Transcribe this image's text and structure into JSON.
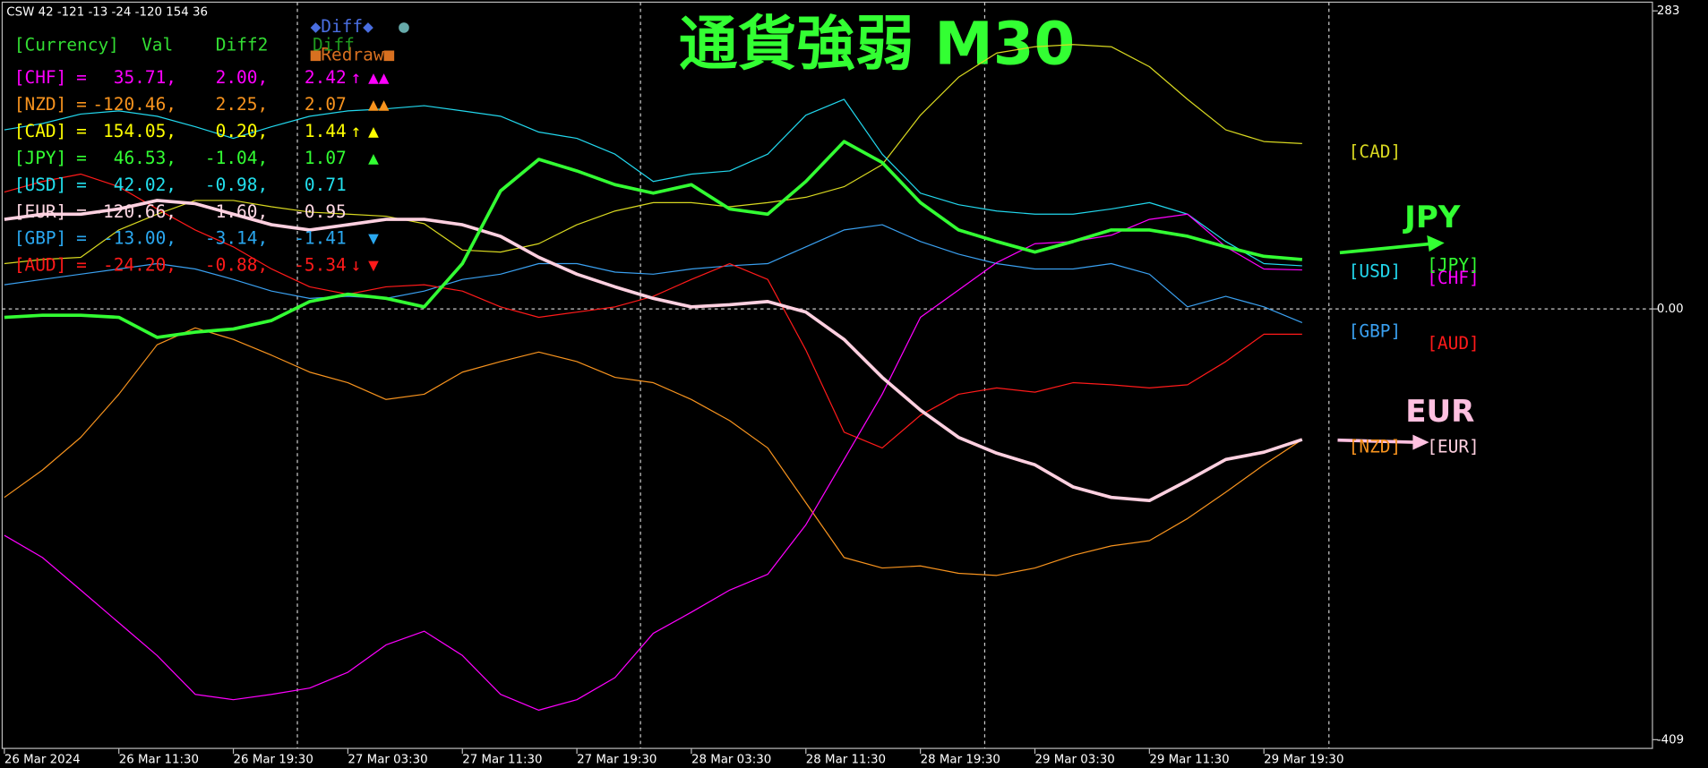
{
  "chart_data": {
    "type": "line",
    "header": "CSW 42 -121 -13 -24 -120 154 36",
    "title": "通貨強弱 M30",
    "title_color": "#33ff33",
    "categories": [
      "26 Mar 2024",
      null,
      null,
      "26 Mar 11:30",
      null,
      null,
      "26 Mar 19:30",
      null,
      null,
      "27 Mar 03:30",
      null,
      null,
      "27 Mar 11:30",
      null,
      null,
      "27 Mar 19:30",
      null,
      null,
      "28 Mar 03:30",
      null,
      null,
      "28 Mar 11:30",
      null,
      null,
      "28 Mar 19:30",
      null,
      null,
      "29 Mar 03:30",
      null,
      null,
      "29 Mar 11:30",
      null,
      null,
      "29 Mar 19:30",
      null
    ],
    "ylim": [
      -409,
      283
    ],
    "yticks": [
      -409,
      {
        "value": 0,
        "label": "0.00"
      },
      283
    ],
    "series": [
      {
        "name": "[CHF]",
        "color": "#ff00ff",
        "line_width": 1,
        "values": [
          -215,
          -236,
          -267,
          -298,
          -329,
          -366,
          -371,
          -366,
          -360,
          -345,
          -319,
          -306,
          -329,
          -366,
          -381,
          -371,
          -350,
          -308,
          -288,
          -267,
          -252,
          -205,
          -143,
          -81,
          -8,
          18,
          44,
          62,
          64,
          70,
          85,
          90,
          59,
          38,
          37
        ]
      },
      {
        "name": "[NZD]",
        "color": "#f7931e",
        "line_width": 1,
        "values": [
          -179,
          -153,
          -122,
          -81,
          -34,
          -18,
          -29,
          -44,
          -60,
          -70,
          -86,
          -81,
          -60,
          -50,
          -41,
          -50,
          -65,
          -70,
          -86,
          -106,
          -132,
          -184,
          -236,
          -246,
          -244,
          -251,
          -253,
          -246,
          -234,
          -225,
          -220,
          -199,
          -174,
          -148,
          -124
        ]
      },
      {
        "name": "[CAD]",
        "color": "#d8d820",
        "line_width": 1,
        "values": [
          43,
          47,
          49,
          75,
          90,
          103,
          103,
          97,
          92,
          90,
          88,
          81,
          56,
          54,
          62,
          80,
          93,
          101,
          101,
          97,
          101,
          106,
          116,
          137,
          184,
          220,
          243,
          249,
          251,
          249,
          230,
          199,
          170,
          159,
          157
        ]
      },
      {
        "name": "[JPY]",
        "color": "#33ff33",
        "line_width": 3,
        "values": [
          -8,
          -6,
          -6,
          -8,
          -27,
          -22,
          -19,
          -11,
          7,
          14,
          10,
          2,
          43,
          112,
          142,
          131,
          118,
          110,
          118,
          95,
          90,
          121,
          159,
          139,
          101,
          75,
          64,
          54,
          64,
          75,
          75,
          69,
          59,
          50,
          47
        ]
      },
      {
        "name": "[USD]",
        "color": "#22d8ee",
        "line_width": 1,
        "values": [
          170,
          176,
          185,
          188,
          183,
          173,
          162,
          173,
          183,
          188,
          190,
          193,
          188,
          183,
          168,
          162,
          147,
          121,
          128,
          131,
          147,
          184,
          199,
          147,
          110,
          99,
          93,
          90,
          90,
          95,
          101,
          90,
          64,
          43,
          41
        ]
      },
      {
        "name": "[EUR]",
        "color": "#ffd0e0",
        "line_width": 3,
        "values": [
          85,
          90,
          90,
          95,
          103,
          100,
          90,
          80,
          75,
          80,
          85,
          85,
          80,
          69,
          49,
          33,
          21,
          10,
          2,
          4,
          7,
          -3,
          -29,
          -65,
          -96,
          -122,
          -137,
          -148,
          -169,
          -179,
          -182,
          -163,
          -143,
          -136,
          -124
        ]
      },
      {
        "name": "[GBP]",
        "color": "#3aa0f0",
        "line_width": 1,
        "values": [
          23,
          28,
          33,
          38,
          43,
          38,
          28,
          17,
          10,
          12,
          10,
          17,
          28,
          33,
          43,
          43,
          35,
          33,
          38,
          41,
          43,
          59,
          75,
          80,
          64,
          52,
          43,
          38,
          38,
          43,
          33,
          2,
          12,
          2,
          -13
        ]
      },
      {
        "name": "[AUD]",
        "color": "#ff1a1a",
        "line_width": 1,
        "values": [
          111,
          121,
          128,
          116,
          95,
          75,
          59,
          38,
          21,
          14,
          21,
          23,
          17,
          2,
          -8,
          -3,
          2,
          12,
          28,
          43,
          28,
          -39,
          -117,
          -132,
          -101,
          -81,
          -75,
          -79,
          -70,
          -72,
          -75,
          -72,
          -50,
          -24,
          -24
        ]
      }
    ],
    "annotations": [
      {
        "text": "JPY",
        "color": "#33ff33"
      },
      {
        "text": "EUR",
        "color": "#ffc0e0"
      }
    ]
  },
  "panel": {
    "diff_toggle": "◆Diff◆",
    "dot": "●",
    "redraw": "■Redraw■",
    "header": [
      "[Currency]",
      "Val",
      "Diff2",
      "Diff"
    ],
    "rows": [
      {
        "code": "[CHF]",
        "eq": "=",
        "val": "35.71,",
        "diff2": "2.00,",
        "diff": "2.42",
        "arrow": "↑",
        "signal": "▲▲",
        "color": "#ff00ff"
      },
      {
        "code": "[NZD]",
        "eq": "=",
        "val": "-120.46,",
        "diff2": "2.25,",
        "diff": "2.07",
        "signal": "▲▲",
        "color": "#f7931e"
      },
      {
        "code": "[CAD]",
        "eq": "=",
        "val": "154.05,",
        "diff2": "0.20,",
        "diff": "1.44",
        "arrow": "↑",
        "signal": "▲",
        "color": "#ffff00"
      },
      {
        "code": "[JPY]",
        "eq": "=",
        "val": "46.53,",
        "diff2": "-1.04,",
        "diff": "1.07",
        "signal": "▲",
        "color": "#33ff33"
      },
      {
        "code": "[USD]",
        "eq": "=",
        "val": "42.02,",
        "diff2": "-0.98,",
        "diff": "0.71",
        "color": "#22e0ee"
      },
      {
        "code": "[EUR]",
        "eq": "=",
        "val": "-120.66,",
        "diff2": "1.60,",
        "diff": "-0.95",
        "color": "#ffd8e4"
      },
      {
        "code": "[GBP]",
        "eq": "=",
        "val": "-13.00,",
        "diff2": "-3.14,",
        "diff": "-1.41",
        "signal": "▼",
        "color": "#2aa8f0"
      },
      {
        "code": "[AUD]",
        "eq": "=",
        "val": "-24.20,",
        "diff2": "-0.88,",
        "diff": "-5.34",
        "arrow": "↓",
        "signal": "▼",
        "color": "#ff1a1a"
      }
    ]
  }
}
